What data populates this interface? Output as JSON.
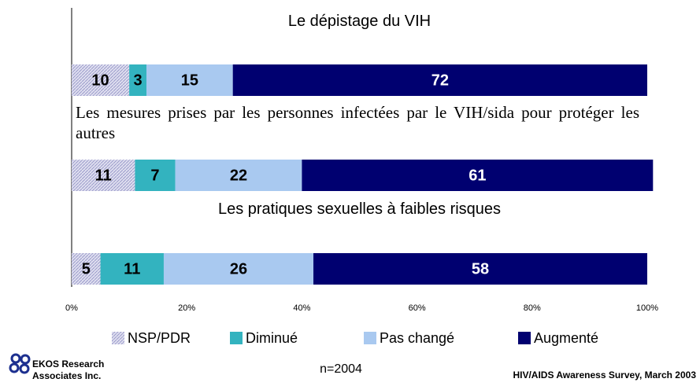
{
  "chart_data": {
    "type": "stacked_bar_horizontal",
    "categories": [
      "Le dépistage du VIH",
      "Les mesures prises par les personnes infectées par le VIH/sida pour protéger les autres",
      "Les pratiques sexuelles à faibles risques"
    ],
    "series": [
      {
        "name": "NSP/PDR",
        "color": "#c9c9e6",
        "values": [
          10,
          11,
          5
        ]
      },
      {
        "name": "Diminué",
        "color": "#33b3bf",
        "values": [
          3,
          7,
          11
        ]
      },
      {
        "name": "Pas changé",
        "color": "#a9c9f0",
        "values": [
          15,
          22,
          26
        ]
      },
      {
        "name": "Augmenté",
        "color": "#000070",
        "values": [
          72,
          61,
          58
        ]
      }
    ],
    "xlim": [
      0,
      100
    ],
    "xticks": [
      {
        "value": 0,
        "label": "0%"
      },
      {
        "value": 20,
        "label": "20%"
      },
      {
        "value": 40,
        "label": "40%"
      },
      {
        "value": 60,
        "label": "60%"
      },
      {
        "value": 80,
        "label": "80%"
      },
      {
        "value": 100,
        "label": "100%"
      }
    ],
    "legend": "bottom"
  },
  "footer": {
    "logo_text": [
      "EKOS Research",
      "Associates Inc."
    ],
    "sample": "n=2004",
    "source": "HIV/AIDS Awareness Survey, March 2003"
  }
}
